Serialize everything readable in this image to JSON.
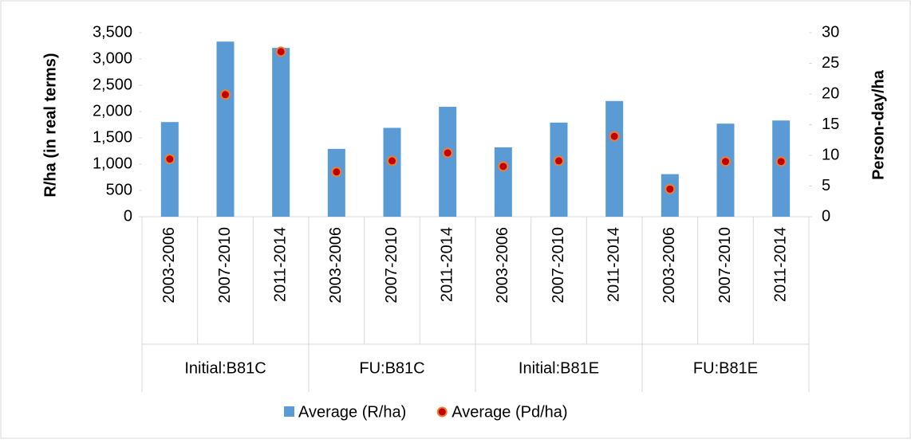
{
  "chart_data": {
    "type": "bar",
    "categories": [
      "2003-2006",
      "2007-2010",
      "2011-2014",
      "2003-2006",
      "2007-2010",
      "2011-2014",
      "2003-2006",
      "2007-2010",
      "2011-2014",
      "2003-2006",
      "2007-2010",
      "2011-2014"
    ],
    "groups": [
      "Initial:B81C",
      "FU:B81C",
      "Initial:B81E",
      "FU:B81E"
    ],
    "y_label": "R/ha (in real terms)",
    "y2_label": "Person-day/ha",
    "series": [
      {
        "name": "Average (R/ha)",
        "type": "bar",
        "color": "#5b9bd5",
        "values": [
          1800,
          3330,
          3210,
          1290,
          1690,
          2090,
          1320,
          1790,
          2200,
          810,
          1770,
          1830
        ]
      },
      {
        "name": "Average (Pd/ha)",
        "type": "scatter",
        "axis": "y2",
        "color": "#c00000",
        "edge_color": "#ed7d31",
        "values": [
          9.4,
          19.9,
          26.9,
          7.3,
          9.1,
          10.4,
          8.2,
          9.1,
          13.1,
          4.5,
          9.0,
          9.0
        ]
      }
    ],
    "ylim": [
      0,
      3500
    ],
    "yticks": [
      0,
      500,
      {
        "value": 1000,
        "label": "1,000"
      },
      {
        "value": 1500,
        "label": "1,500"
      },
      {
        "value": 2000,
        "label": "2,000"
      },
      {
        "value": 2500,
        "label": "2,500"
      },
      {
        "value": 3000,
        "label": "3,000"
      },
      {
        "value": 3500,
        "label": "3,500"
      }
    ],
    "y2lim": [
      0,
      30
    ],
    "y2ticks": [
      0,
      5,
      10,
      15,
      20,
      25,
      30
    ],
    "grid": false,
    "legend": "bottom"
  }
}
